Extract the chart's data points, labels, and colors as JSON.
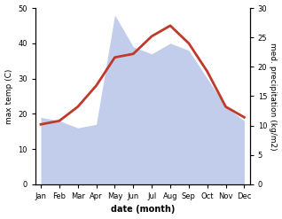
{
  "months": [
    "Jan",
    "Feb",
    "Mar",
    "Apr",
    "May",
    "Jun",
    "Jul",
    "Aug",
    "Sep",
    "Oct",
    "Nov",
    "Dec"
  ],
  "x": [
    0,
    1,
    2,
    3,
    4,
    5,
    6,
    7,
    8,
    9,
    10,
    11
  ],
  "temperature": [
    17,
    18,
    22,
    28,
    36,
    37,
    42,
    45,
    40,
    32,
    22,
    19
  ],
  "precipitation_left_scale": [
    19,
    18,
    16,
    17,
    48,
    39,
    37,
    40,
    38,
    30,
    22,
    18
  ],
  "temp_ylim": [
    0,
    50
  ],
  "precip_ylim": [
    0,
    50
  ],
  "right_ylim": [
    0,
    30
  ],
  "temp_color": "#c0392b",
  "precip_fill_color": "#b8c4e8",
  "xlabel": "date (month)",
  "ylabel_left": "max temp (C)",
  "ylabel_right": "med. precipitation (kg/m2)",
  "temp_linewidth": 2.0,
  "background_color": "#ffffff",
  "left_yticks": [
    0,
    10,
    20,
    30,
    40,
    50
  ],
  "right_yticks": [
    0,
    5,
    10,
    15,
    20,
    25,
    30
  ],
  "right_tick_labels": [
    "0",
    "5",
    "10",
    "15",
    "20",
    "25",
    "30"
  ]
}
